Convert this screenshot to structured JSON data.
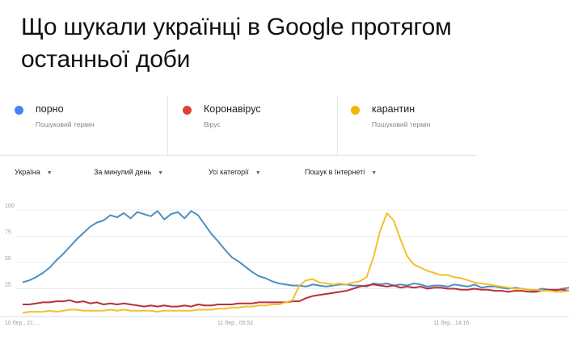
{
  "headline": "Що шукали українці в Google протягом останньої доби",
  "terms": [
    {
      "name": "порно",
      "sub": "Пошуковий термін",
      "color": "#4285f4"
    },
    {
      "name": "Коронавірус",
      "sub": "Вірус",
      "color": "#db4437"
    },
    {
      "name": "карантин",
      "sub": "Пошуковий термін",
      "color": "#f4b400"
    }
  ],
  "filters": {
    "region": "Україна",
    "period": "За минулий день",
    "category": "Усі категорії",
    "search_type": "Пошук в Інтернеті"
  },
  "chart_data": {
    "type": "line",
    "y_ticks": [
      "100",
      "75",
      "50",
      "25"
    ],
    "ylim": [
      0,
      100
    ],
    "x_tick_labels": [
      "10 бер., 21:...",
      "11 бер., 05:52",
      "11 бер., 14:16"
    ],
    "x_tick_positions": [
      0,
      32,
      64
    ],
    "grid": true,
    "series": [
      {
        "name": "порно",
        "color": "#4a90c2",
        "values": [
          31,
          33,
          36,
          40,
          45,
          52,
          58,
          65,
          72,
          78,
          84,
          88,
          90,
          95,
          93,
          97,
          92,
          98,
          96,
          94,
          99,
          91,
          96,
          98,
          92,
          99,
          95,
          86,
          77,
          70,
          62,
          55,
          51,
          46,
          41,
          37,
          35,
          32,
          30,
          29,
          28,
          28,
          27,
          29,
          28,
          27,
          28,
          29,
          29,
          28,
          28,
          27,
          30,
          29,
          30,
          28,
          29,
          28,
          30,
          29,
          27,
          28,
          28,
          27,
          29,
          28,
          27,
          29,
          26,
          27,
          27,
          26,
          25,
          26,
          25,
          24,
          23,
          25,
          24,
          23,
          25,
          26
        ]
      },
      {
        "name": "Коронавірус",
        "color": "#b9303c",
        "values": [
          10,
          10,
          11,
          12,
          12,
          13,
          13,
          14,
          12,
          13,
          11,
          12,
          10,
          11,
          10,
          11,
          10,
          9,
          8,
          9,
          8,
          9,
          8,
          8,
          9,
          8,
          10,
          9,
          9,
          10,
          10,
          10,
          11,
          11,
          11,
          12,
          12,
          12,
          12,
          12,
          13,
          13,
          16,
          18,
          19,
          20,
          21,
          22,
          23,
          25,
          27,
          28,
          29,
          28,
          27,
          28,
          26,
          27,
          26,
          27,
          25,
          26,
          26,
          25,
          25,
          24,
          24,
          25,
          24,
          24,
          23,
          23,
          22,
          23,
          23,
          22,
          22,
          23,
          24,
          24,
          24,
          23
        ]
      },
      {
        "name": "карантин",
        "color": "#f2c12e",
        "values": [
          2,
          3,
          3,
          3,
          4,
          3,
          4,
          5,
          5,
          4,
          4,
          4,
          4,
          5,
          4,
          5,
          4,
          4,
          4,
          4,
          3,
          4,
          4,
          4,
          4,
          4,
          5,
          5,
          5,
          6,
          6,
          7,
          7,
          8,
          8,
          9,
          9,
          10,
          10,
          12,
          14,
          28,
          33,
          34,
          31,
          30,
          29,
          30,
          29,
          31,
          32,
          36,
          55,
          80,
          97,
          90,
          72,
          56,
          48,
          45,
          42,
          40,
          38,
          38,
          36,
          35,
          33,
          31,
          30,
          29,
          28,
          27,
          26,
          25,
          25,
          24,
          24,
          23,
          23,
          22,
          22,
          23
        ]
      }
    ]
  }
}
